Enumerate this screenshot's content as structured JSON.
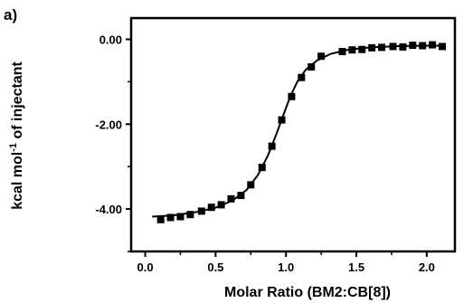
{
  "panel_label": "a)",
  "chart_data": {
    "type": "scatter",
    "title": "",
    "xlabel": "Molar Ratio (BM2:CB[8])",
    "ylabel_prefix": "kcal mol",
    "ylabel_sup": "-1",
    "ylabel_suffix": " of injectant",
    "xlim": [
      -0.1,
      2.2
    ],
    "ylim": [
      -5.0,
      0.5
    ],
    "xticks": [
      0.0,
      0.5,
      1.0,
      1.5,
      2.0
    ],
    "xtick_labels": [
      "0.0",
      "0.5",
      "1.0",
      "1.5",
      "2.0"
    ],
    "yticks": [
      0.0,
      -2.0,
      -4.0
    ],
    "ytick_labels": [
      "0.00",
      "-2.00",
      "-4.00"
    ],
    "grid": false,
    "legend": "none",
    "marker": "square",
    "series": [
      {
        "points": [
          {
            "x": 0.11,
            "y": -4.25
          },
          {
            "x": 0.18,
            "y": -4.2
          },
          {
            "x": 0.25,
            "y": -4.18
          },
          {
            "x": 0.32,
            "y": -4.13
          },
          {
            "x": 0.4,
            "y": -4.05
          },
          {
            "x": 0.47,
            "y": -3.96
          },
          {
            "x": 0.54,
            "y": -3.9
          },
          {
            "x": 0.61,
            "y": -3.76
          },
          {
            "x": 0.68,
            "y": -3.68
          },
          {
            "x": 0.75,
            "y": -3.43
          },
          {
            "x": 0.83,
            "y": -3.02
          },
          {
            "x": 0.9,
            "y": -2.52
          },
          {
            "x": 0.97,
            "y": -1.9
          },
          {
            "x": 1.04,
            "y": -1.35
          },
          {
            "x": 1.11,
            "y": -0.9
          },
          {
            "x": 1.18,
            "y": -0.65
          },
          {
            "x": 1.25,
            "y": -0.4
          },
          {
            "x": 1.4,
            "y": -0.29
          },
          {
            "x": 1.47,
            "y": -0.25
          },
          {
            "x": 1.54,
            "y": -0.24
          },
          {
            "x": 1.61,
            "y": -0.2
          },
          {
            "x": 1.68,
            "y": -0.19
          },
          {
            "x": 1.76,
            "y": -0.17
          },
          {
            "x": 1.83,
            "y": -0.18
          },
          {
            "x": 1.9,
            "y": -0.14
          },
          {
            "x": 1.97,
            "y": -0.15
          },
          {
            "x": 2.04,
            "y": -0.13
          },
          {
            "x": 2.11,
            "y": -0.17
          }
        ]
      }
    ],
    "fit_line": [
      {
        "x": 0.05,
        "y": -4.18
      },
      {
        "x": 0.2,
        "y": -4.15
      },
      {
        "x": 0.35,
        "y": -4.08
      },
      {
        "x": 0.5,
        "y": -3.97
      },
      {
        "x": 0.62,
        "y": -3.8
      },
      {
        "x": 0.72,
        "y": -3.55
      },
      {
        "x": 0.8,
        "y": -3.2
      },
      {
        "x": 0.87,
        "y": -2.75
      },
      {
        "x": 0.93,
        "y": -2.25
      },
      {
        "x": 0.98,
        "y": -1.8
      },
      {
        "x": 1.03,
        "y": -1.35
      },
      {
        "x": 1.08,
        "y": -1.0
      },
      {
        "x": 1.14,
        "y": -0.72
      },
      {
        "x": 1.22,
        "y": -0.5
      },
      {
        "x": 1.32,
        "y": -0.34
      },
      {
        "x": 1.45,
        "y": -0.24
      },
      {
        "x": 1.6,
        "y": -0.19
      },
      {
        "x": 1.8,
        "y": -0.16
      },
      {
        "x": 2.0,
        "y": -0.15
      },
      {
        "x": 2.13,
        "y": -0.15
      }
    ]
  }
}
